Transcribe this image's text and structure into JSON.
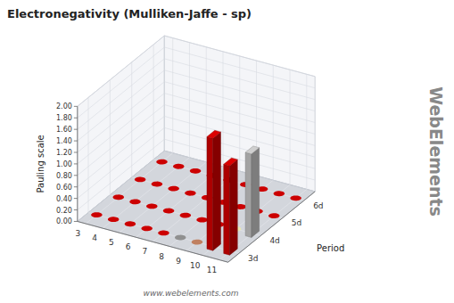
{
  "chart_data": {
    "type": "bar3d",
    "title": "Electronegativity (Mulliken-Jaffe - sp)",
    "ylabel": "Period",
    "zlabel": "Pauling scale",
    "categories": [
      "3",
      "4",
      "5",
      "6",
      "7",
      "8",
      "9",
      "10",
      "11"
    ],
    "series": [
      {
        "name": "3d",
        "values": [
          0.0,
          0.0,
          0.0,
          0.0,
          0.0,
          0.0,
          0.0,
          1.95,
          1.55
        ],
        "colors": [
          "#CC0000",
          "#CC0000",
          "#CC0000",
          "#CC0000",
          "#CC0000",
          "#909090",
          "#C08060",
          "#CC0000",
          "#CC0000"
        ]
      },
      {
        "name": "4d",
        "values": [
          0.0,
          0.0,
          0.0,
          0.0,
          0.0,
          0.0,
          0.0,
          0.0,
          1.45
        ],
        "colors": [
          "#CC0000",
          "#CC0000",
          "#CC0000",
          "#CC0000",
          "#CC0000",
          "#CC0000",
          "#CC0000",
          "#E8E8B0",
          "#C0C0C0"
        ]
      },
      {
        "name": "5d",
        "values": [
          0.0,
          0.0,
          0.0,
          0.0,
          0.0,
          0.0,
          0.0,
          0.0,
          0.0
        ],
        "colors": [
          "#CC0000",
          "#CC0000",
          "#CC0000",
          "#CC0000",
          "#CC0000",
          "#CC0000",
          "#CC0000",
          "#CC0000",
          "#CC0000"
        ]
      },
      {
        "name": "6d",
        "values": [
          0.0,
          0.0,
          0.0,
          0.0,
          0.0,
          0.0,
          0.0,
          0.0,
          0.0
        ],
        "colors": [
          "#CC0000",
          "#CC0000",
          "#CC0000",
          "#CC0000",
          "#CC0000",
          "#CC0000",
          "#CC0000",
          "#CC0000",
          "#CC0000"
        ]
      }
    ],
    "zlim": [
      0.0,
      2.0
    ],
    "zticks": [
      {
        "value": 0,
        "label": "0.00"
      },
      {
        "value": 0.2,
        "label": "0.20"
      },
      {
        "value": 0.4,
        "label": "0.40"
      },
      {
        "value": 0.6,
        "label": "0.60"
      },
      {
        "value": 0.8,
        "label": "0.80"
      },
      {
        "value": 1.0,
        "label": "1.00"
      },
      {
        "value": 1.2,
        "label": "1.20"
      },
      {
        "value": 1.4,
        "label": "1.40"
      },
      {
        "value": 1.6,
        "label": "1.60"
      },
      {
        "value": 1.8,
        "label": "1.80"
      },
      {
        "value": 2.0,
        "label": "2.00"
      }
    ],
    "grid": true,
    "annotations": [
      {
        "text": "www.webelements.com"
      },
      {
        "text": "WebElements"
      }
    ]
  }
}
